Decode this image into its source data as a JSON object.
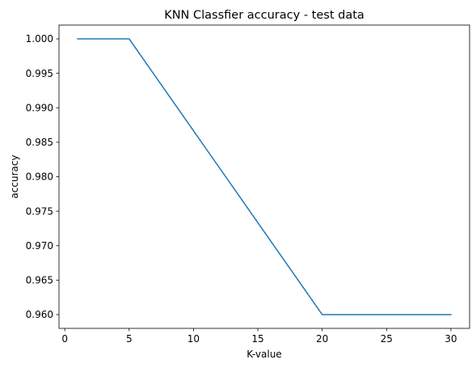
{
  "chart_data": {
    "type": "line",
    "title": "KNN Classfier accuracy - test data",
    "xlabel": "K-value",
    "ylabel": "accuracy",
    "xlim": [
      -0.45,
      31.45
    ],
    "ylim": [
      0.958,
      1.002
    ],
    "x_ticks": [
      0,
      5,
      10,
      15,
      20,
      25,
      30
    ],
    "x_tick_labels": [
      "0",
      "5",
      "10",
      "15",
      "20",
      "25",
      "30"
    ],
    "y_ticks": [
      0.96,
      0.965,
      0.97,
      0.975,
      0.98,
      0.985,
      0.99,
      0.995,
      1.0
    ],
    "y_tick_labels": [
      "0.960",
      "0.965",
      "0.970",
      "0.975",
      "0.980",
      "0.985",
      "0.990",
      "0.995",
      "1.000"
    ],
    "grid": false,
    "series": [
      {
        "color": "#1f77b4",
        "x": [
          1,
          5,
          20,
          30
        ],
        "y": [
          1.0,
          1.0,
          0.96,
          0.96
        ]
      }
    ]
  }
}
